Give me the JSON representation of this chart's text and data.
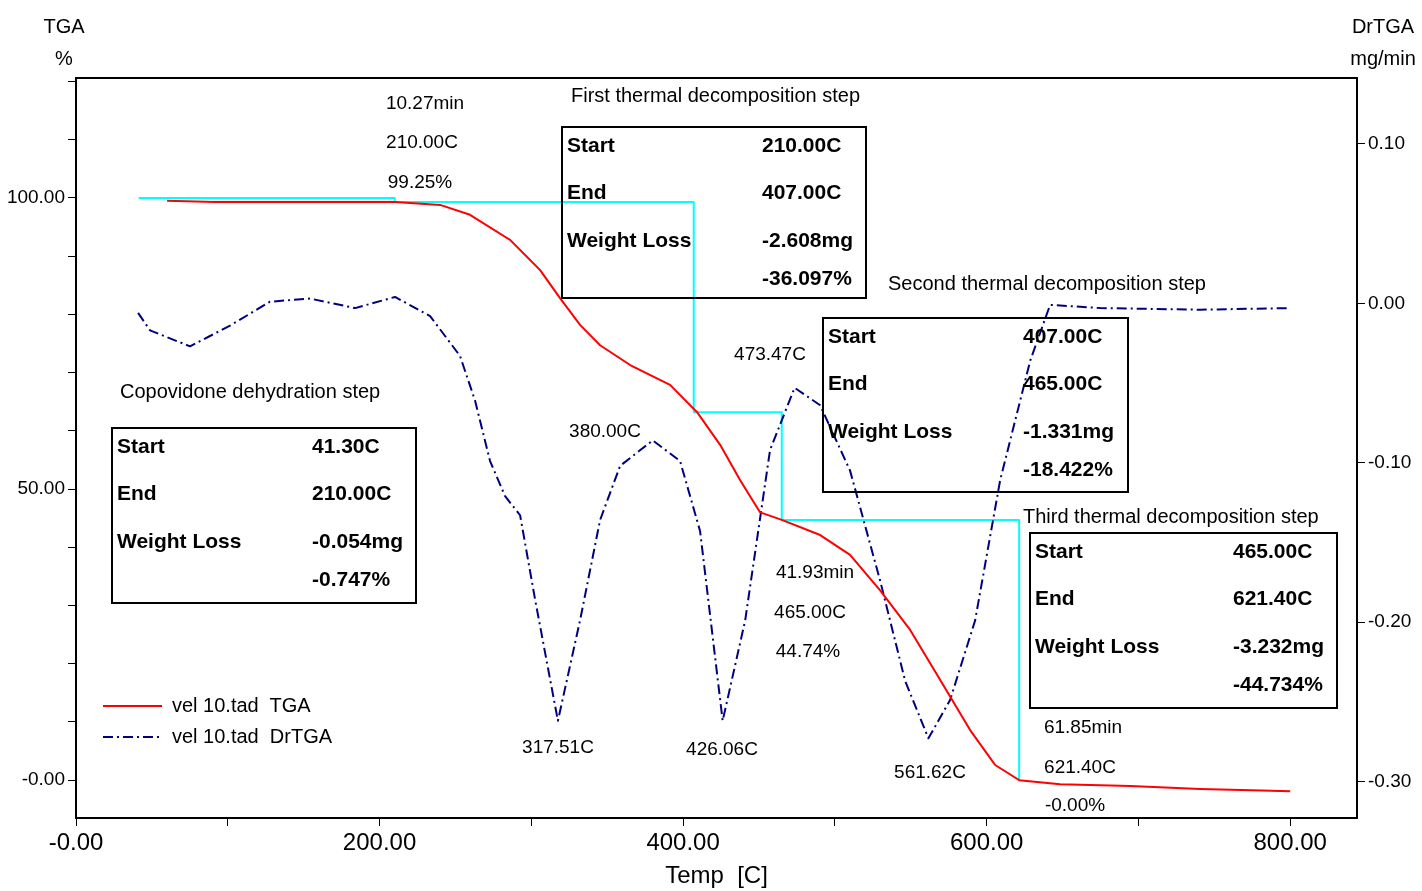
{
  "chart_data": {
    "type": "line",
    "xlabel": "Temp  [C]",
    "ylabel": "TGA\n%",
    "y2label": "DrTGA\nmg/min",
    "xlim": [
      0,
      844
    ],
    "xticks": [
      {
        "value": 0,
        "label": "-0.00"
      },
      {
        "value": 100,
        "label": null
      },
      {
        "value": 200,
        "label": "200.00"
      },
      {
        "value": 300,
        "label": null
      },
      {
        "value": 400,
        "label": "400.00"
      },
      {
        "value": 500,
        "label": null
      },
      {
        "value": 600,
        "label": "600.00"
      },
      {
        "value": 700,
        "label": null
      },
      {
        "value": 800,
        "label": "800.00"
      }
    ],
    "ylim": [
      -6.5,
      120.6
    ],
    "yticks": [
      {
        "value": 0,
        "label": "-0.00"
      },
      {
        "value": 10,
        "label": null
      },
      {
        "value": 20,
        "label": null
      },
      {
        "value": 30,
        "label": null
      },
      {
        "value": 40,
        "label": null
      },
      {
        "value": 50,
        "label": "50.00"
      },
      {
        "value": 60,
        "label": null
      },
      {
        "value": 70,
        "label": null
      },
      {
        "value": 80,
        "label": null
      },
      {
        "value": 90,
        "label": null
      },
      {
        "value": 100,
        "label": "100.00"
      },
      {
        "value": 110,
        "label": null
      },
      {
        "value": 120,
        "label": null
      }
    ],
    "y2lim": [
      -0.323,
      0.1414
    ],
    "y2ticks": [
      {
        "value": -0.3,
        "label": "-0.30"
      },
      {
        "value": -0.2,
        "label": "-0.20"
      },
      {
        "value": -0.1,
        "label": "-0.10"
      },
      {
        "value": 0,
        "label": "0.00"
      },
      {
        "value": 0.1,
        "label": "0.10"
      }
    ],
    "grid": false,
    "legend": "bottom left",
    "marker": "none",
    "series": [
      {
        "name": "vel 10.tad  TGA",
        "color": "#ff0000",
        "line_style": "solid",
        "x": [
          60.0,
          91.6,
          210.2,
          239.9,
          259.6,
          286.0,
          305.8,
          318.9,
          332.1,
          345.3,
          365.1,
          391.4,
          409.2,
          424.4,
          437.6,
          450.7,
          465.0,
          490.3,
          510.0,
          529.8,
          549.6,
          569.4,
          589.1,
          605.6,
          621.4,
          648.4,
          694.6,
          740.7,
          800.0
        ],
        "values": [
          99.5,
          99.3,
          99.3,
          98.8,
          97.1,
          92.8,
          87.6,
          82.8,
          78.2,
          74.7,
          71.3,
          67.9,
          63.2,
          57.6,
          51.5,
          46.0,
          44.7,
          42.1,
          38.7,
          32.6,
          25.8,
          17.2,
          8.6,
          2.6,
          0.0,
          -0.7,
          -1.0,
          -1.5,
          -1.9
        ]
      },
      {
        "name": "vel 10.tad  DrTGA",
        "type": "line",
        "axis": "y2",
        "color": "#00007f",
        "line_style": "dashed",
        "x": [
          40.9,
          48.8,
          75.1,
          101.5,
          127.8,
          154.2,
          183.9,
          210.2,
          233.3,
          253.0,
          262.9,
          272.8,
          282.7,
          292.6,
          302.5,
          317.51,
          332.1,
          345.3,
          358.5,
          380.0,
          398.0,
          411.2,
          426.06,
          440.9,
          457.3,
          473.47,
          490.3,
          510.0,
          529.8,
          546.3,
          561.62,
          575.9,
          592.4,
          608.9,
          628.7,
          641.8,
          674.8,
          740.7,
          800.0
        ],
        "values": [
          -0.006,
          -0.017,
          -0.027,
          -0.014,
          0.001,
          0.003,
          -0.003,
          0.004,
          -0.008,
          -0.033,
          -0.061,
          -0.099,
          -0.121,
          -0.133,
          -0.186,
          -0.262,
          -0.199,
          -0.136,
          -0.102,
          -0.086,
          -0.099,
          -0.143,
          -0.262,
          -0.199,
          -0.092,
          -0.053,
          -0.064,
          -0.105,
          -0.174,
          -0.237,
          -0.273,
          -0.249,
          -0.199,
          -0.111,
          -0.036,
          -0.001,
          -0.003,
          -0.004,
          -0.003
        ]
      },
      {
        "type": "step",
        "color": "#00ffff",
        "x": [
          41.3,
          210.0,
          407.0,
          465.0,
          621.4
        ],
        "values": [
          100.0,
          99.3,
          63.2,
          44.7,
          0.0
        ]
      }
    ],
    "annotations": [
      "10.27min",
      "210.00C",
      "99.25%",
      "380.00C",
      "473.47C",
      "317.51C",
      "426.06C",
      "561.62C",
      "41.93min",
      "465.00C",
      "44.74%",
      "61.85min",
      "621.40C",
      "-0.00%",
      "Copovidone dehydration step",
      "Start",
      "41.30C",
      "End",
      "210.00C",
      "Weight Loss",
      "-0.054mg",
      "-0.747%",
      "First thermal decomposition step",
      "Start",
      "210.00C",
      "End",
      "407.00C",
      "Weight Loss",
      "-2.608mg",
      "-36.097%",
      "Second thermal decomposition step",
      "Start",
      "407.00C",
      "End",
      "465.00C",
      "Weight Loss",
      "-1.331mg",
      "-18.422%",
      "Third thermal decomposition step",
      "Start",
      "465.00C",
      "End",
      "621.40C",
      "Weight Loss",
      "-3.232mg",
      "-44.734%"
    ]
  }
}
